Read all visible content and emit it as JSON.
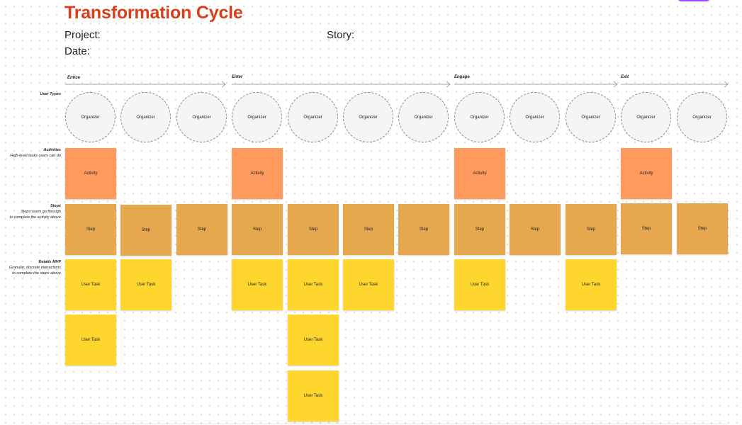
{
  "header": {
    "title": "Transformation Cycle",
    "project_label": "Project:",
    "story_label": "Story:",
    "date_label": "Date:"
  },
  "phases": [
    "Entice",
    "Enter",
    "Engage",
    "Exit"
  ],
  "rows": {
    "user_types": {
      "title": "User Types"
    },
    "activities": {
      "title": "Activities",
      "subtitle": "High-level tasks users can do"
    },
    "steps": {
      "title": "Steps",
      "subtitle_line1": "Steps users go through",
      "subtitle_line2": "to complete the activity above"
    },
    "details": {
      "title": "Details MVP",
      "subtitle_line1": "Granular, discrete interactions",
      "subtitle_line2": "to complete the steps above"
    }
  },
  "user_types": [
    "Organizer",
    "Organizer",
    "Organizer",
    "Organizer",
    "Organizer",
    "Organizer",
    "Organizer",
    "Organizer",
    "Organizer",
    "Organizer",
    "Organizer",
    "Organizer"
  ],
  "activities": [
    "Activity",
    "Activity",
    "Activity",
    "Activity"
  ],
  "steps": [
    "Step",
    "Step",
    "Step",
    "Step",
    "Step",
    "Step",
    "Step",
    "Step",
    "Step",
    "Step",
    "Step",
    "Step"
  ],
  "user_tasks": [
    "User Task",
    "User Task",
    "User Task",
    "User Task",
    "User Task",
    "User Task",
    "User Task",
    "User Task",
    "User Task",
    "User Task"
  ],
  "colors": {
    "title": "#d7401a",
    "activity": "#ff9a5e",
    "step": "#e6a84f",
    "task": "#ffd62e"
  }
}
